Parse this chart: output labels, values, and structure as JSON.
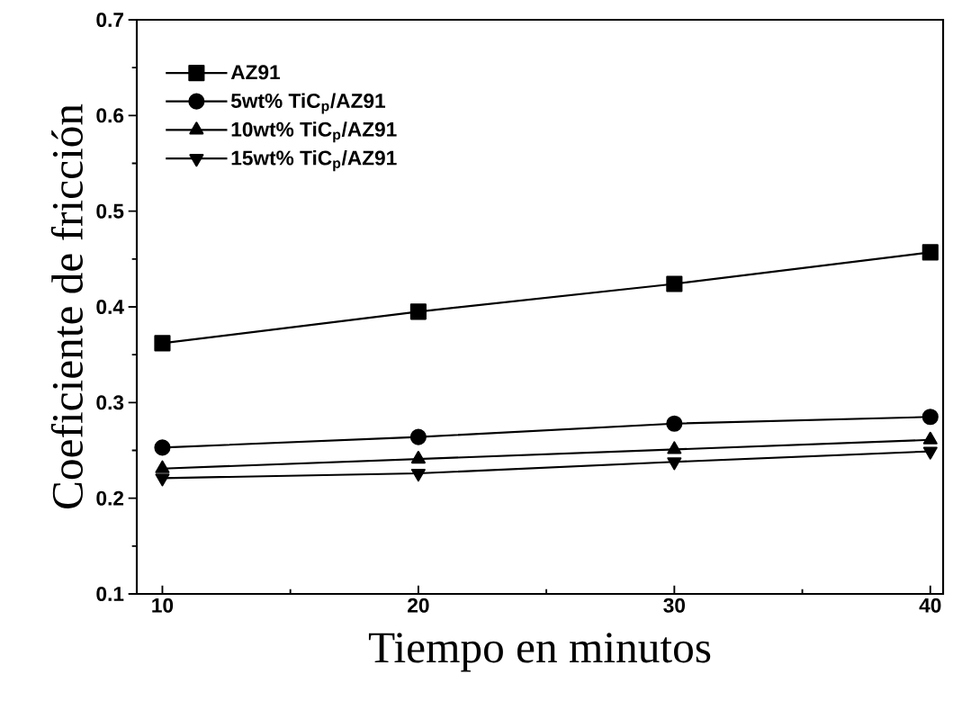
{
  "chart_data": {
    "type": "line",
    "xlabel": "Tiempo en minutos",
    "ylabel": "Coeficiente de fricción",
    "x": [
      10,
      20,
      30,
      40
    ],
    "series": [
      {
        "name": "AZ91",
        "color": "#000000",
        "marker": "square",
        "values": [
          0.362,
          0.395,
          0.424,
          0.457
        ]
      },
      {
        "name": "5wt% TiC$_{p}$/AZ91",
        "color": "#000000",
        "marker": "circle",
        "values": [
          0.253,
          0.264,
          0.278,
          0.285
        ]
      },
      {
        "name": "10wt% TiC$_{p}$/AZ91",
        "color": "#000000",
        "marker": "triangle",
        "values": [
          0.231,
          0.241,
          0.251,
          0.261
        ]
      },
      {
        "name": "15wt% TiC$_{p}$/AZ91",
        "color": "#000000",
        "marker": "triangle_down",
        "values": [
          0.221,
          0.226,
          0.238,
          0.249
        ]
      }
    ],
    "xlim": [
      9,
      40.5
    ],
    "ylim": [
      0.1,
      0.7
    ],
    "xticks": [
      10,
      20,
      30,
      40
    ],
    "yticks": [
      0.1,
      0.2,
      0.3,
      0.4,
      0.5,
      0.6,
      0.7
    ],
    "legend": "top left",
    "line_style": "solid",
    "grid": false
  }
}
